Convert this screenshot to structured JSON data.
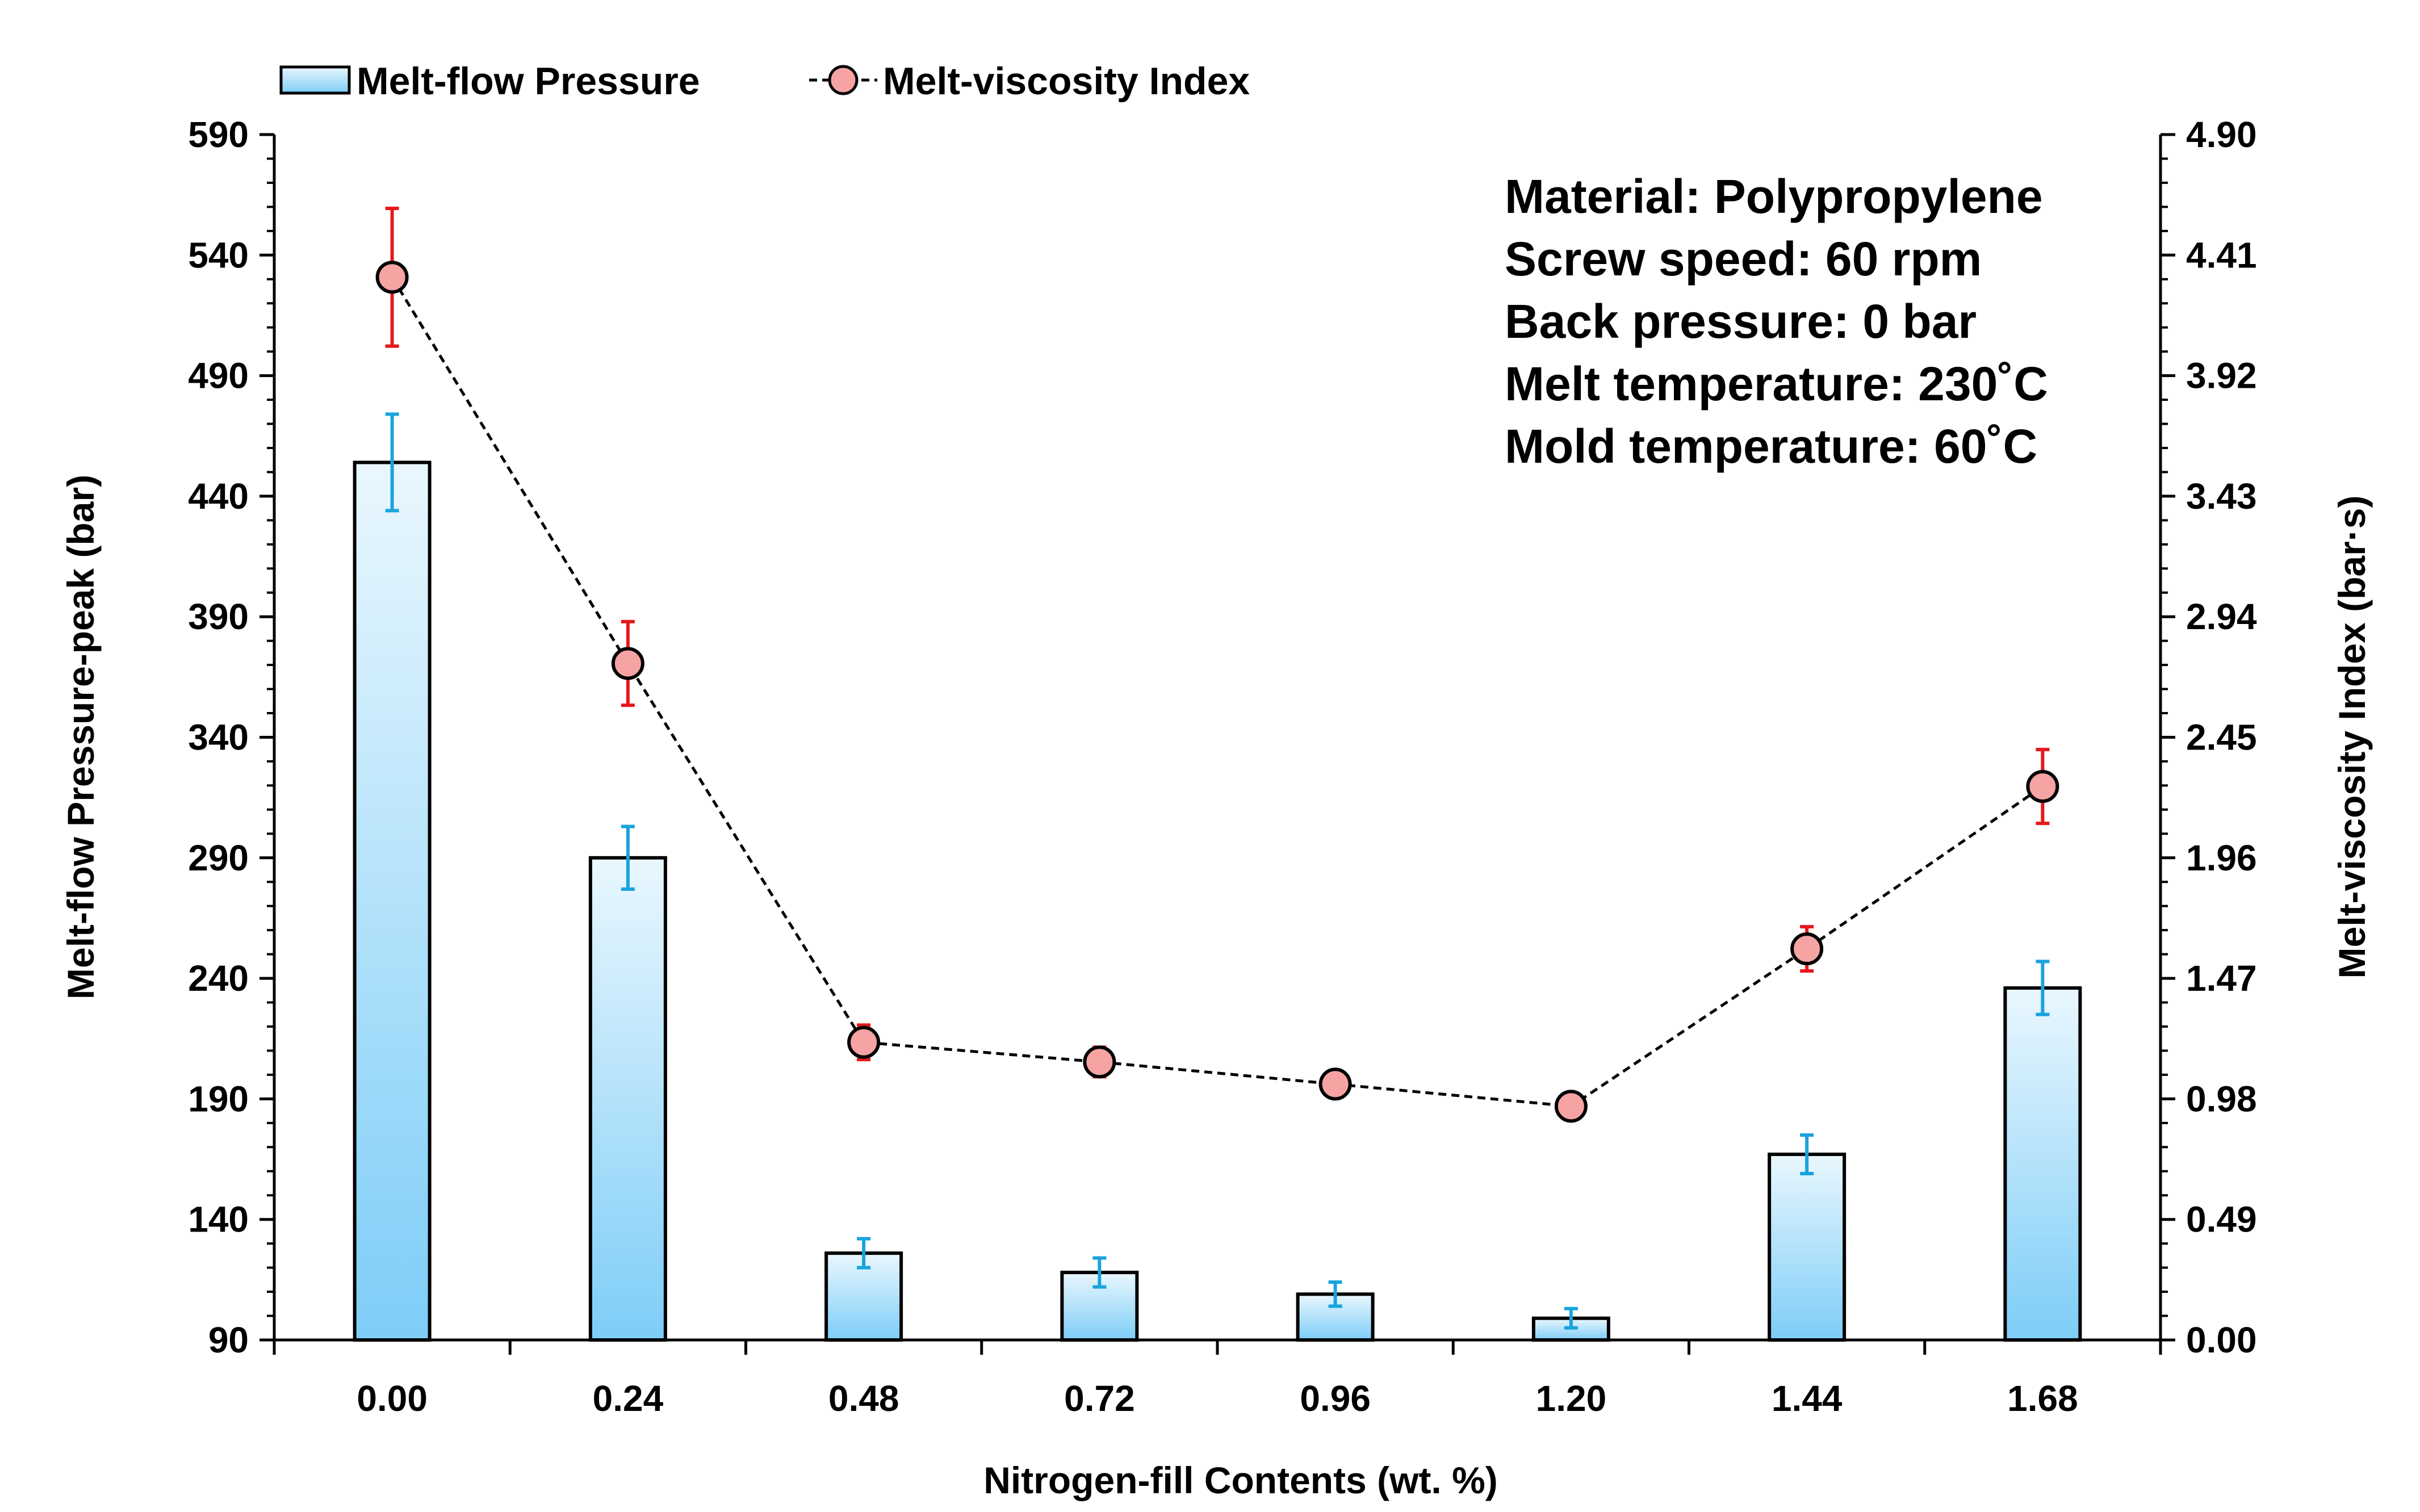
{
  "chart_data": {
    "type": "bar",
    "categories": [
      "0.00",
      "0.24",
      "0.48",
      "0.72",
      "0.96",
      "1.20",
      "1.44",
      "1.68"
    ],
    "xlabel": "Nitrogen-fill Contents (wt. %)",
    "ylabel": "Melt-flow Pressure-peak (bar)",
    "ylabel_right": "Melt-viscosity Index (bar·s)",
    "ylim": [
      90,
      590
    ],
    "ylim_right": [
      0,
      4.9
    ],
    "yticks": [
      "590",
      "540",
      "490",
      "440",
      "390",
      "340",
      "290",
      "240",
      "190",
      "140",
      "90"
    ],
    "yticks_right": [
      "4.90",
      "4.41",
      "3.92",
      "3.43",
      "2.94",
      "2.45",
      "1.96",
      "1.47",
      "0.98",
      "0.49",
      "0.00"
    ],
    "legend_position": "top-left",
    "series": [
      {
        "name": "Melt-flow Pressure",
        "type": "bar",
        "axis": "left",
        "values": [
          454,
          290,
          126,
          118,
          109,
          99,
          167,
          236
        ],
        "errors": [
          20,
          13,
          6,
          6,
          5,
          4,
          8,
          11
        ],
        "color": "#5bc0f5",
        "error_color": "#1aa3dd"
      },
      {
        "name": "Melt-viscosity Index",
        "type": "line",
        "axis": "right",
        "values": [
          4.32,
          2.75,
          1.21,
          1.13,
          1.04,
          0.95,
          1.59,
          2.25
        ],
        "errors": [
          0.28,
          0.17,
          0.07,
          0.06,
          0.05,
          0.04,
          0.09,
          0.15
        ],
        "color": "#f5a3a3",
        "error_color": "#e5191c"
      }
    ],
    "annotations": [
      "Material: Polypropylene",
      "Screw speed: 60 rpm",
      "Back pressure: 0 bar",
      "Melt temperature: 230˚C",
      "Mold temperature: 60˚C"
    ]
  }
}
